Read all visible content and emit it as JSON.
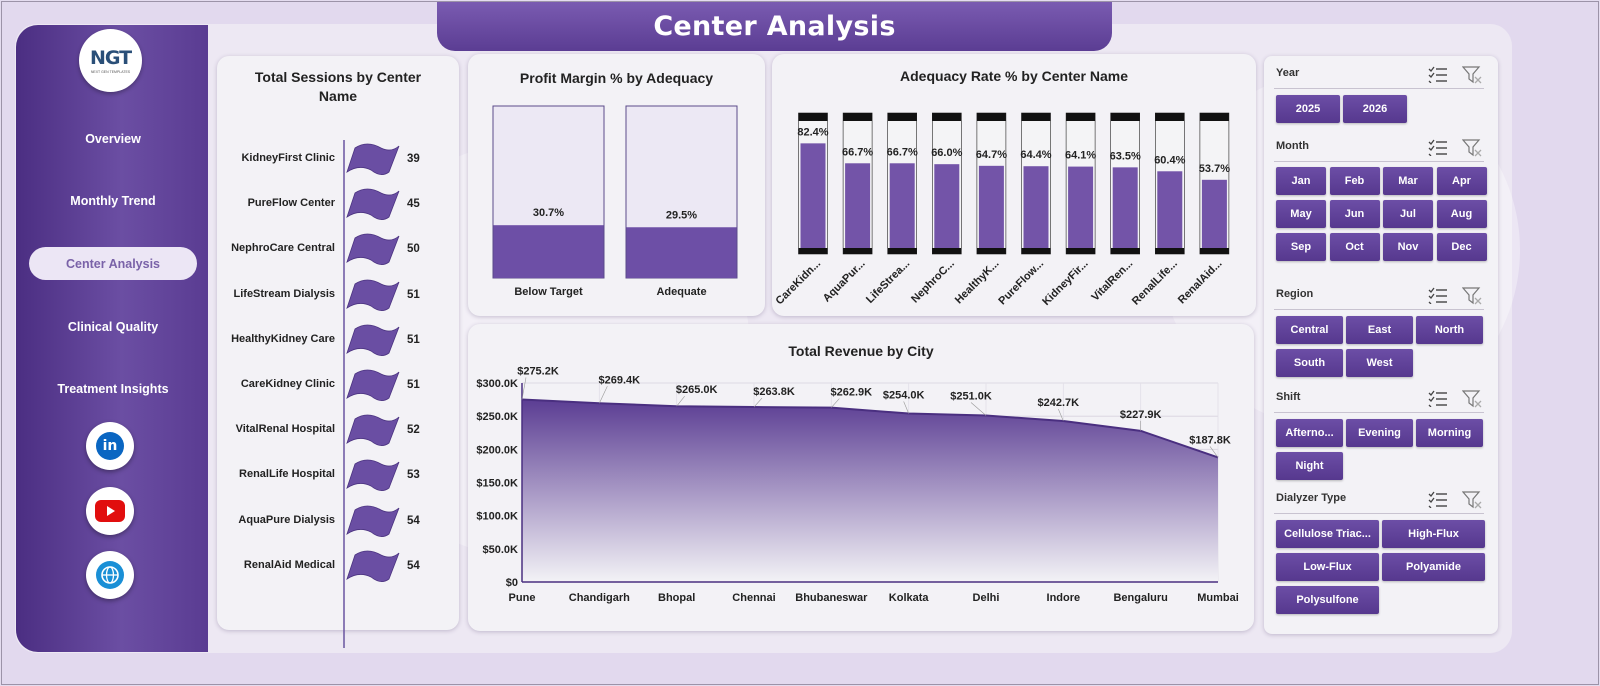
{
  "page": {
    "title": "Center Analysis"
  },
  "logo": {
    "text": "NGT",
    "sub": "NEXT GEN TEMPLATES"
  },
  "nav": {
    "items": [
      {
        "label": "Overview",
        "active": false
      },
      {
        "label": "Monthly Trend",
        "active": false
      },
      {
        "label": "Center Analysis",
        "active": true
      },
      {
        "label": "Clinical Quality",
        "active": false
      },
      {
        "label": "Treatment Insights",
        "active": false
      }
    ]
  },
  "social": [
    {
      "icon": "linkedin-icon",
      "label": "in",
      "color": "#0a66c2"
    },
    {
      "icon": "youtube-icon",
      "label": "",
      "color": "#e10e0e"
    },
    {
      "icon": "globe-icon",
      "label": "",
      "color": "#1a8fd6"
    }
  ],
  "sessions": {
    "title": "Total Sessions by Center Name",
    "rows": [
      {
        "label": "KidneyFirst Clinic",
        "value": 39
      },
      {
        "label": "PureFlow Center",
        "value": 45
      },
      {
        "label": "NephroCare Central",
        "value": 50
      },
      {
        "label": "LifeStream Dialysis",
        "value": 51
      },
      {
        "label": "HealthyKidney Care",
        "value": 51
      },
      {
        "label": "CareKidney Clinic",
        "value": 51
      },
      {
        "label": "VitalRenal Hospital",
        "value": 52
      },
      {
        "label": "RenalLife Hospital",
        "value": 53
      },
      {
        "label": "AquaPure Dialysis",
        "value": 54
      },
      {
        "label": "RenalAid Medical",
        "value": 54
      }
    ]
  },
  "profit": {
    "title": "Profit Margin % by Adequacy",
    "chart_data": {
      "type": "bar",
      "categories": [
        "Below Target",
        "Adequate"
      ],
      "values": [
        30.7,
        29.5
      ],
      "value_labels": [
        "30.7%",
        "29.5%"
      ],
      "ylim": [
        0,
        100
      ]
    }
  },
  "adequacy": {
    "title": "Adequacy Rate % by Center Name",
    "chart_data": {
      "type": "bar",
      "categories": [
        "CareKidn...",
        "AquaPur...",
        "LifeStrea...",
        "NephroC...",
        "HealthyK...",
        "PureFlow...",
        "KidneyFir...",
        "VitalRen...",
        "RenalLife...",
        "RenalAid..."
      ],
      "values": [
        82.4,
        66.7,
        66.7,
        66.0,
        64.7,
        64.4,
        64.1,
        63.5,
        60.4,
        53.7
      ],
      "value_labels": [
        "82.4%",
        "66.7%",
        "66.7%",
        "66.0%",
        "64.7%",
        "64.4%",
        "64.1%",
        "63.5%",
        "60.4%",
        "53.7%"
      ],
      "ylim": [
        0,
        100
      ]
    }
  },
  "revenue": {
    "title": "Total Revenue  by City",
    "chart_data": {
      "type": "area",
      "categories": [
        "Pune",
        "Chandigarh",
        "Bhopal",
        "Chennai",
        "Bhubaneswar",
        "Kolkata",
        "Delhi",
        "Indore",
        "Bengaluru",
        "Mumbai"
      ],
      "values": [
        275.2,
        269.4,
        265.0,
        263.8,
        262.9,
        254.0,
        251.0,
        242.7,
        227.9,
        187.8
      ],
      "value_labels": [
        "$275.2K",
        "$269.4K",
        "$265.0K",
        "$263.8K",
        "$262.9K",
        "$254.0K",
        "$251.0K",
        "$242.7K",
        "$227.9K",
        "$187.8K"
      ],
      "y_ticks": [
        "$0",
        "$50.0K",
        "$100.0K",
        "$150.0K",
        "$200.0K",
        "$250.0K",
        "$300.0K"
      ],
      "ylim": [
        0,
        300
      ],
      "unit": "$K"
    }
  },
  "slicers": [
    {
      "title": "Year",
      "items": [
        "2025",
        "2026"
      ]
    },
    {
      "title": "Month",
      "items": [
        "Jan",
        "Feb",
        "Mar",
        "Apr",
        "May",
        "Jun",
        "Jul",
        "Aug",
        "Sep",
        "Oct",
        "Nov",
        "Dec"
      ]
    },
    {
      "title": "Region",
      "items": [
        "Central",
        "East",
        "North",
        "South",
        "West"
      ]
    },
    {
      "title": "Shift",
      "items": [
        "Afterno...",
        "Evening",
        "Morning",
        "Night"
      ]
    },
    {
      "title": "Dialyzer Type",
      "items": [
        "Cellulose Triac...",
        "High-Flux",
        "Low-Flux",
        "Polyamide",
        "Polysulfone"
      ]
    }
  ],
  "colors": {
    "accent": "#5b3d93",
    "bar": "#7354a8",
    "sidebar": "#5a3c92"
  }
}
